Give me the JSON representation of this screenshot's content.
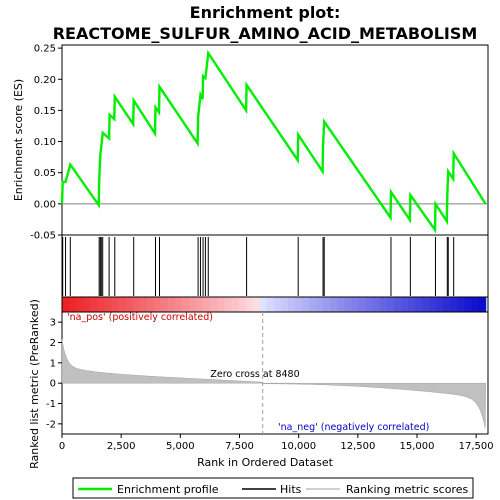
{
  "chart_data": {
    "type": "line",
    "title_line1": "Enrichment plot:",
    "title_line2": "REACTOME_SULFUR_AMINO_ACID_METABOLISM",
    "es_ylabel": "Enrichment score (ES)",
    "metric_ylabel": "Ranked list metric (PreRanked)",
    "xlabel": "Rank in Ordered Dataset",
    "es_ylim": [
      -0.05,
      0.255
    ],
    "es_yticks": [
      "-0.05",
      "0.00",
      "0.05",
      "0.10",
      "0.15",
      "0.20",
      "0.25"
    ],
    "metric_ylim": [
      -2.5,
      3.5
    ],
    "metric_yticks": [
      "-2",
      "-1",
      "0",
      "1",
      "2",
      "3"
    ],
    "xlim": [
      0,
      18000
    ],
    "xticks": [
      "0",
      "2,500",
      "5,000",
      "7,500",
      "10,000",
      "12,500",
      "15,000",
      "17,500"
    ],
    "n_genes": 17900,
    "zero_cross_rank": 8480,
    "zero_cross_label": "Zero cross at 8480",
    "pos_label": "'na_pos' (positively correlated)",
    "neg_label": "'na_neg' (negatively correlated)",
    "hits": [
      30,
      150,
      350,
      1570,
      1620,
      1660,
      1720,
      1990,
      2230,
      3030,
      3950,
      4120,
      5750,
      5850,
      5960,
      6060,
      6180,
      7800,
      9980,
      11030,
      11080,
      13900,
      14720,
      15780,
      16280,
      16320,
      16550
    ],
    "es_curve": [
      [
        0,
        0.0
      ],
      [
        30,
        0.035
      ],
      [
        150,
        0.035
      ],
      [
        350,
        0.063
      ],
      [
        1550,
        -0.002
      ],
      [
        1570,
        0.038
      ],
      [
        1620,
        0.078
      ],
      [
        1660,
        0.092
      ],
      [
        1720,
        0.114
      ],
      [
        1990,
        0.105
      ],
      [
        2010,
        0.143
      ],
      [
        2210,
        0.136
      ],
      [
        2230,
        0.172
      ],
      [
        3010,
        0.128
      ],
      [
        3030,
        0.166
      ],
      [
        3930,
        0.113
      ],
      [
        3950,
        0.155
      ],
      [
        4100,
        0.147
      ],
      [
        4120,
        0.188
      ],
      [
        5730,
        0.097
      ],
      [
        5750,
        0.139
      ],
      [
        5850,
        0.175
      ],
      [
        5940,
        0.168
      ],
      [
        5960,
        0.205
      ],
      [
        6060,
        0.202
      ],
      [
        6180,
        0.242
      ],
      [
        7780,
        0.15
      ],
      [
        7800,
        0.191
      ],
      [
        9960,
        0.07
      ],
      [
        9980,
        0.111
      ],
      [
        11010,
        0.052
      ],
      [
        11030,
        0.092
      ],
      [
        11080,
        0.132
      ],
      [
        13880,
        -0.022
      ],
      [
        13900,
        0.019
      ],
      [
        14700,
        -0.026
      ],
      [
        14720,
        0.014
      ],
      [
        15760,
        -0.042
      ],
      [
        15780,
        0.0
      ],
      [
        16260,
        -0.028
      ],
      [
        16280,
        0.013
      ],
      [
        16320,
        0.052
      ],
      [
        16530,
        0.04
      ],
      [
        16550,
        0.081
      ],
      [
        17900,
        0.0
      ]
    ],
    "series": [
      {
        "name": "Enrichment profile",
        "color": "#00ee00"
      },
      {
        "name": "Hits",
        "color": "#000000"
      },
      {
        "name": "Ranking metric scores",
        "color": "#c0c0c0"
      }
    ]
  }
}
